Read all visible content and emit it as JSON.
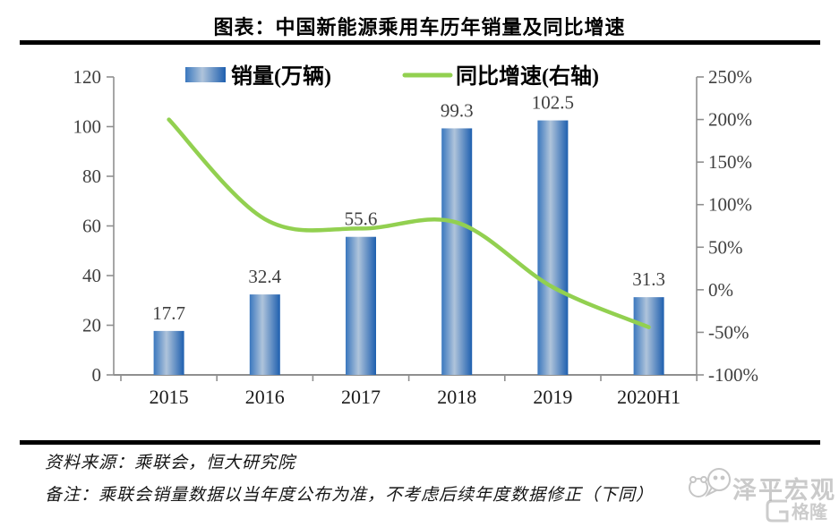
{
  "header": {
    "title": "图表：中国新能源乘用车历年销量及同比增速"
  },
  "legend": {
    "bars_label": "销量(万辆)",
    "line_label": "同比增速(右轴)"
  },
  "footer": {
    "source": "资料来源：乘联会，恒大研究院",
    "note": "备注：乘联会销量数据以当年度公布为准，不考虑后续年度数据修正（下同）"
  },
  "watermarks": {
    "zeping": "泽平宏观",
    "gelonghui": "格隆汇"
  },
  "colors": {
    "bar_edge_left": "#3A77BE",
    "bar_mid": "#AFC4DB",
    "bar_edge_right": "#1E5FAF",
    "line": "#92D050",
    "axis": "#8F8F8F",
    "data_label": "#3F3F3F",
    "tick_label": "#404040",
    "category_label": "#1A1A1A",
    "rule": "#000000",
    "watermark": "#C6C6C6"
  },
  "chart_data": {
    "type": "bar",
    "title": "图表：中国新能源乘用车历年销量及同比增速",
    "categories": [
      "2015",
      "2016",
      "2017",
      "2018",
      "2019",
      "2020H1"
    ],
    "series": [
      {
        "name": "销量(万辆)",
        "type": "bar",
        "axis": "left",
        "values": [
          17.7,
          32.4,
          55.6,
          99.3,
          102.5,
          31.3
        ]
      },
      {
        "name": "同比增速(右轴)",
        "type": "line",
        "axis": "right",
        "values_pct": [
          200,
          83,
          72,
          79,
          3,
          -44
        ]
      }
    ],
    "data_labels": [
      "17.7",
      "32.4",
      "55.6",
      "99.3",
      "102.5",
      "31.3"
    ],
    "left_axis": {
      "ticks": [
        0,
        20,
        40,
        60,
        80,
        100,
        120
      ],
      "range": [
        0,
        120
      ]
    },
    "right_axis": {
      "ticks_pct": [
        -100,
        -50,
        0,
        50,
        100,
        150,
        200,
        250
      ],
      "range_pct": [
        -100,
        250
      ],
      "suffix": "%"
    },
    "legend_position": "top",
    "grid": false
  }
}
